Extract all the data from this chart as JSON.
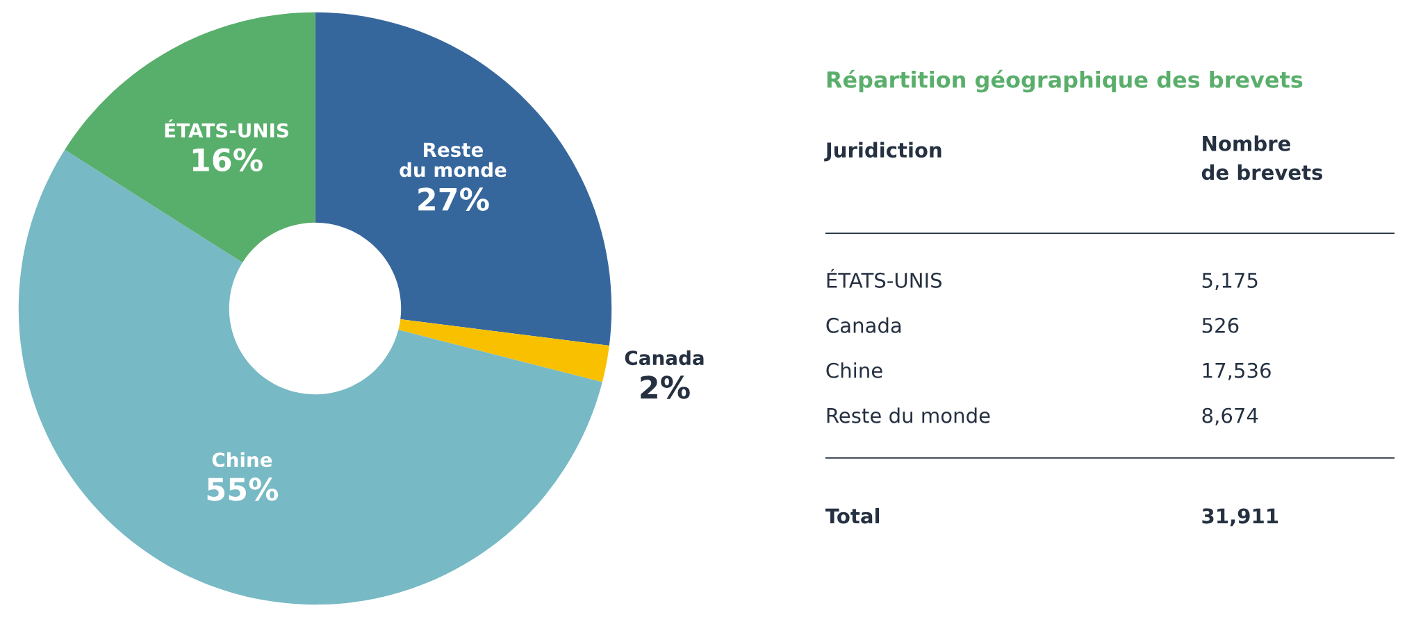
{
  "chart_data": [
    {
      "type": "donut",
      "categories": [
        "Reste\ndu monde",
        "Canada",
        "Chine",
        "ÉTATS-UNIS"
      ],
      "values": [
        27,
        2,
        55,
        16
      ],
      "colors": [
        "#36679c",
        "#f9c000",
        "#77b9c4",
        "#58ae6b"
      ],
      "value_labels": [
        "27%",
        "2%",
        "55%",
        "16%"
      ]
    },
    {
      "type": "other",
      "title": "Répartition géographique des brevets",
      "annotations": [
        "Juridiction",
        "Nombre\nde brevets",
        "Total"
      ],
      "categories": [
        "ÉTATS-UNIS",
        "Canada",
        "Chine",
        "Reste du monde"
      ],
      "value_labels": [
        "5,175",
        "526",
        "17,536",
        "8,674"
      ],
      "totals": [
        "31,911"
      ]
    }
  ]
}
